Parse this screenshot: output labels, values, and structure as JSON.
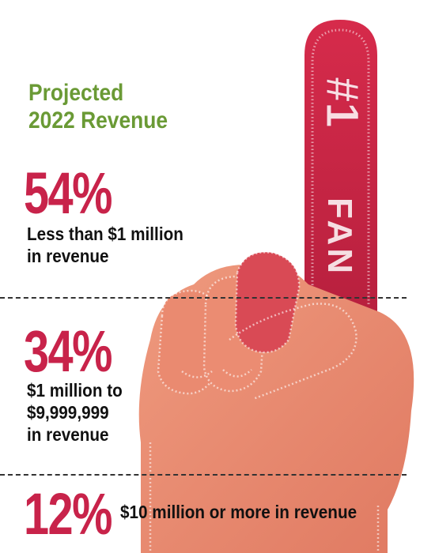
{
  "colors": {
    "title_green": "#6a9a35",
    "percent_crimson": "#c8234a",
    "finger_red": "#cf2846",
    "hand_salmon": "#e8836a"
  },
  "icons": {
    "hand": "foam-finger-icon"
  },
  "hand_text": {
    "number": "#1",
    "word": "FAN"
  },
  "title_lines": [
    "Projected",
    "2022 Revenue"
  ],
  "chart_data": {
    "type": "table",
    "title": "Projected 2022 Revenue",
    "unit": "%",
    "rows": [
      {
        "value": 54,
        "label": "54%",
        "description_lines": [
          "Less than $1 million",
          "in revenue"
        ]
      },
      {
        "value": 34,
        "label": "34%",
        "description_lines": [
          "$1 million to",
          "$9,999,999",
          "in revenue"
        ]
      },
      {
        "value": 12,
        "label": "12%",
        "description_lines": [
          "$10 million or more in revenue"
        ]
      }
    ]
  }
}
